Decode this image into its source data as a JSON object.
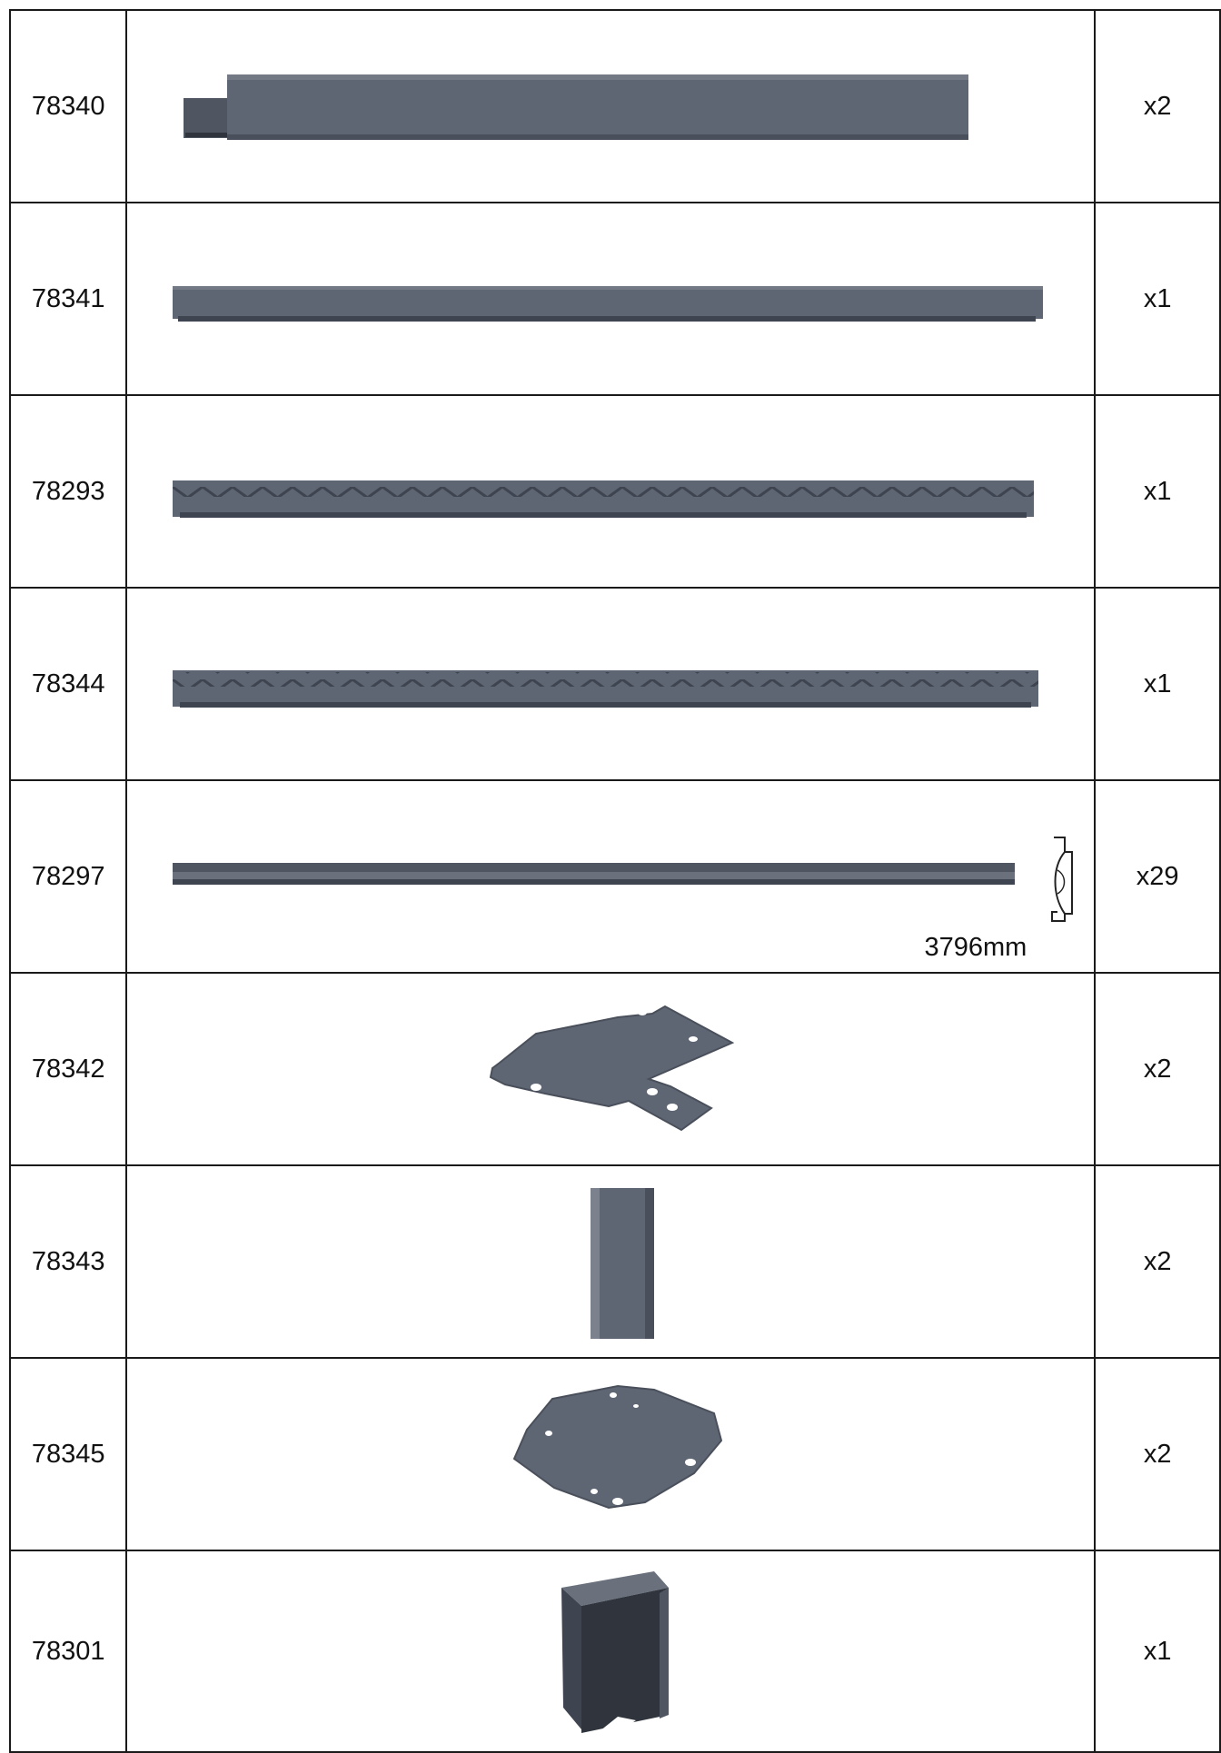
{
  "parts": [
    {
      "code": "78340",
      "qty": "x2",
      "icon": "rectangular-tube-icon"
    },
    {
      "code": "78341",
      "qty": "x1",
      "icon": "channel-rail-icon"
    },
    {
      "code": "78293",
      "qty": "x1",
      "icon": "toothed-rail-icon"
    },
    {
      "code": "78344",
      "qty": "x1",
      "icon": "toothed-rail-icon"
    },
    {
      "code": "78297",
      "qty": "x29",
      "icon": "slat-profile-icon",
      "dimension": "3796mm"
    },
    {
      "code": "78342",
      "qty": "x2",
      "icon": "mounting-plate-icon"
    },
    {
      "code": "78343",
      "qty": "x2",
      "icon": "short-channel-icon"
    },
    {
      "code": "78345",
      "qty": "x2",
      "icon": "octagonal-plate-icon"
    },
    {
      "code": "78301",
      "qty": "x1",
      "icon": "bracket-box-icon"
    }
  ],
  "colors": {
    "part_fill": "#5f6673",
    "part_dark": "#3e4450",
    "part_light": "#7b828e",
    "border": "#1a1a1a"
  }
}
